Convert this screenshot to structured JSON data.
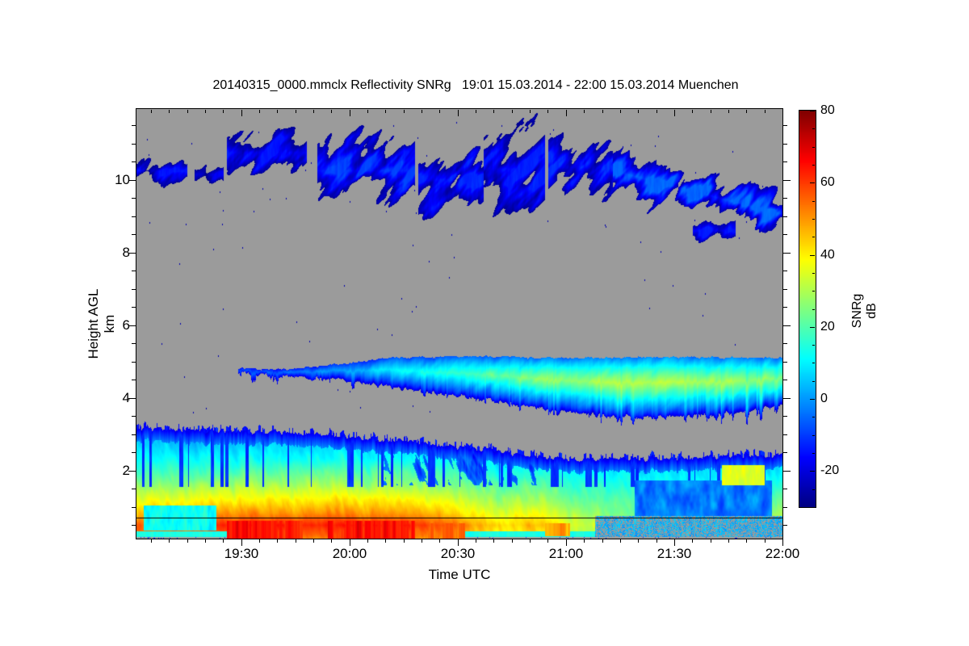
{
  "chart_data": {
    "type": "heatmap",
    "title": "20140315_0000.mmclx Reflectivity SNRg   19:01 15.03.2014 - 22:00 15.03.2014 Muenchen",
    "xlabel": "Time UTC",
    "ylabel": "Height AGL km",
    "axes": {
      "x": {
        "start_clock": "19:01",
        "end_clock": "22:00",
        "duration_min": 179,
        "major_ticks": [
          {
            "label": "19:30",
            "t": 29
          },
          {
            "label": "20:00",
            "t": 59
          },
          {
            "label": "20:30",
            "t": 89
          },
          {
            "label": "21:00",
            "t": 119
          },
          {
            "label": "21:30",
            "t": 149
          },
          {
            "label": "22:00",
            "t": 179
          }
        ],
        "minor_step_min": 5
      },
      "y": {
        "range_km": [
          0.13,
          11.95
        ],
        "major_ticks": [
          2,
          4,
          6,
          8,
          10
        ],
        "minor_step_km": 0.5
      },
      "colorbar": {
        "label": "SNRg dB",
        "range_dB": [
          -30,
          80
        ],
        "major_ticks": [
          -20,
          0,
          20,
          40,
          60,
          80
        ],
        "minor_step_dB": 5,
        "colormap": "jet",
        "nodata_color": "#9B9B9B"
      }
    },
    "features": {
      "cirrus_patches": [
        {
          "t": [
            0,
            14
          ],
          "h": [
            9.8,
            10.7
          ],
          "v": [
            -28,
            -14
          ]
        },
        {
          "t": [
            16,
            24
          ],
          "h": [
            9.8,
            10.5
          ],
          "v": [
            -28,
            -18
          ]
        },
        {
          "t": [
            25,
            47
          ],
          "h": [
            9.9,
            11.6
          ],
          "v": [
            -28,
            -14
          ]
        },
        {
          "t": [
            50,
            77
          ],
          "h": [
            9.2,
            11.3
          ],
          "v": [
            -27,
            -9
          ]
        },
        {
          "t": [
            78,
            96
          ],
          "h": [
            9.0,
            11.0
          ],
          "v": [
            -27,
            -12
          ]
        },
        {
          "t": [
            96,
            113
          ],
          "h": [
            9.0,
            11.6
          ],
          "v": [
            -28,
            -13
          ]
        },
        {
          "t": [
            114,
            132
          ],
          "h": [
            9.3,
            11.4
          ],
          "v": [
            -27,
            -11
          ]
        },
        {
          "t": [
            132,
            179
          ],
          "h": [
            8.6,
            10.7
          ],
          "v": [
            -26,
            -5
          ],
          "descending": true
        },
        {
          "t": [
            154,
            166
          ],
          "h": [
            8.3,
            8.9
          ],
          "v": [
            -26,
            -14
          ]
        }
      ],
      "mid_band": {
        "t_start": 28,
        "top_pts": [
          [
            28,
            4.82
          ],
          [
            40,
            4.78
          ],
          [
            55,
            4.92
          ],
          [
            70,
            5.1
          ],
          [
            90,
            5.15
          ],
          [
            120,
            5.1
          ],
          [
            150,
            5.12
          ],
          [
            179,
            5.1
          ]
        ],
        "bottom_pts": [
          [
            28,
            4.68
          ],
          [
            40,
            4.58
          ],
          [
            55,
            4.5
          ],
          [
            70,
            4.3
          ],
          [
            90,
            4.05
          ],
          [
            110,
            3.75
          ],
          [
            125,
            3.55
          ],
          [
            140,
            3.45
          ],
          [
            155,
            3.52
          ],
          [
            170,
            3.62
          ],
          [
            179,
            3.85
          ]
        ],
        "core_dB": [
          [
            28,
            -10
          ],
          [
            55,
            0
          ],
          [
            75,
            12
          ],
          [
            90,
            18
          ],
          [
            110,
            25
          ],
          [
            130,
            31
          ],
          [
            150,
            31
          ],
          [
            165,
            29
          ],
          [
            179,
            27
          ]
        ],
        "edge_dB": -22
      },
      "low_layer": {
        "top_pts": [
          [
            0,
            3.18
          ],
          [
            20,
            3.1
          ],
          [
            40,
            3.05
          ],
          [
            55,
            2.95
          ],
          [
            70,
            2.85
          ],
          [
            85,
            2.7
          ],
          [
            100,
            2.55
          ],
          [
            110,
            2.42
          ],
          [
            120,
            2.3
          ],
          [
            135,
            2.3
          ],
          [
            150,
            2.36
          ],
          [
            165,
            2.4
          ],
          [
            179,
            2.42
          ]
        ],
        "bands": [
          {
            "h": [
              0.13,
              0.35
            ],
            "dB": 56
          },
          {
            "h": [
              0.35,
              0.65
            ],
            "dB": 62
          },
          {
            "h": [
              0.65,
              1.0
            ],
            "dB": 50
          },
          {
            "h": [
              1.0,
              1.5
            ],
            "dB": 38
          },
          {
            "h": [
              1.5,
              2.0
            ],
            "dB": 25
          },
          {
            "h": [
              2.0,
              2.6
            ],
            "dB": 12
          },
          {
            "h": [
              2.6,
              3.4
            ],
            "dB": 2
          }
        ],
        "intensity_vs_t": [
          [
            0,
            0.88
          ],
          [
            25,
            1.0
          ],
          [
            75,
            1.0
          ],
          [
            90,
            0.85
          ],
          [
            100,
            0.7
          ],
          [
            113,
            0.72
          ],
          [
            120,
            0.6
          ],
          [
            130,
            0.5
          ],
          [
            145,
            0.42
          ],
          [
            160,
            0.42
          ],
          [
            170,
            0.5
          ],
          [
            179,
            0.55
          ]
        ],
        "early_cool_patch": {
          "t": [
            2,
            22
          ],
          "h": [
            0.35,
            1.05
          ],
          "dB": 12
        },
        "surface_cyan_band": {
          "h": [
            0.18,
            0.34
          ],
          "dB": 14
        },
        "dark_red_streaks": [
          {
            "t": [
              25,
              46
            ],
            "h": [
              0.13,
              0.62
            ],
            "dB": 74
          },
          {
            "t": [
              53,
              77
            ],
            "h": [
              0.13,
              0.62
            ],
            "dB": 73
          },
          {
            "t": [
              80,
              91
            ],
            "h": [
              0.13,
              0.55
            ],
            "dB": 64
          },
          {
            "t": [
              113,
              120
            ],
            "h": [
              0.2,
              0.55
            ],
            "dB": 58
          },
          {
            "t": [
              150,
              153
            ],
            "h": [
              0.22,
              0.4
            ],
            "dB": 48
          },
          {
            "t": [
              172,
              179
            ],
            "h": [
              0.22,
              0.4
            ],
            "dB": 48
          }
        ],
        "blue_blob_region": {
          "t": [
            138,
            176
          ],
          "h": [
            0.75,
            1.72
          ],
          "dB_range": [
            -12,
            6
          ]
        },
        "clutter_speckle_region": {
          "t": [
            127,
            179
          ],
          "h": [
            0.13,
            0.76
          ]
        },
        "late_yellow_patch": {
          "t": [
            162,
            174
          ],
          "h": [
            1.6,
            2.15
          ],
          "dB": 36
        },
        "ground_line_km": 0.7
      },
      "specks": {
        "mid_count": 55,
        "mid_h": [
          3.4,
          8.8
        ],
        "high_count": 45,
        "high_h": [
          8.8,
          11.7
        ],
        "dB": -25
      }
    }
  }
}
